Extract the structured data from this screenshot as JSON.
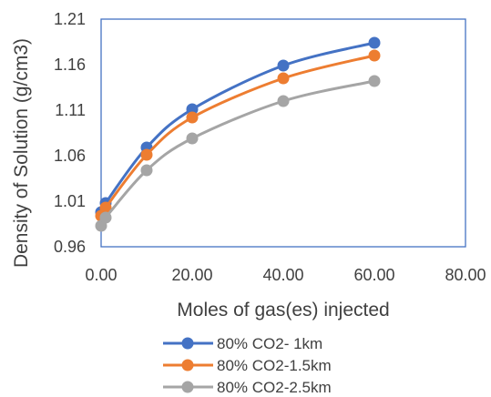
{
  "chart_data": {
    "type": "line",
    "title": "",
    "xlabel": "Moles of gas(es) injected",
    "ylabel": "Density of Solution (g/cm3)",
    "xlim": [
      0,
      80
    ],
    "ylim": [
      0.96,
      1.21
    ],
    "x_ticks": [
      "0.00",
      "20.00",
      "40.00",
      "60.00",
      "80.00"
    ],
    "y_ticks": [
      "0.96",
      "1.01",
      "1.06",
      "1.11",
      "1.16",
      "1.21"
    ],
    "x": [
      0,
      1,
      10,
      20,
      40,
      60
    ],
    "series": [
      {
        "name": "80% CO2- 1km",
        "color": "#4472C4",
        "values": [
          0.998,
          1.008,
          1.069,
          1.111,
          1.159,
          1.184
        ]
      },
      {
        "name": "80% CO2-1.5km",
        "color": "#ED7D31",
        "values": [
          0.994,
          1.003,
          1.061,
          1.102,
          1.145,
          1.17
        ]
      },
      {
        "name": "80% CO2-2.5km",
        "color": "#A5A5A5",
        "values": [
          0.983,
          0.992,
          1.044,
          1.079,
          1.12,
          1.142
        ]
      }
    ],
    "grid": false,
    "legend_position": "bottom",
    "plot_border_color": "#4472C4"
  }
}
